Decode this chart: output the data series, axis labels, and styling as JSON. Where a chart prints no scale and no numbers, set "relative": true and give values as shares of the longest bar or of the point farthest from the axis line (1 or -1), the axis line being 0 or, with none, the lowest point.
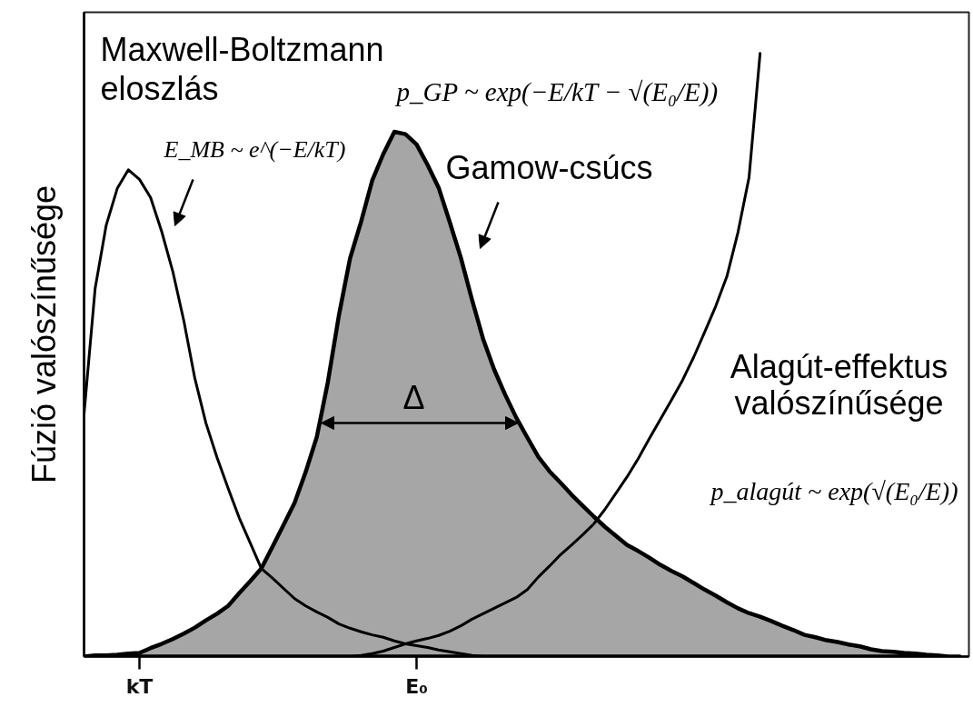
{
  "chart_data": {
    "type": "line",
    "relative": true,
    "ylabel": "Fúzió valószínűsége",
    "categories": [
      null,
      null,
      null,
      null,
      null,
      "kT",
      null,
      null,
      null,
      null,
      null,
      null,
      null,
      null,
      null,
      null,
      null,
      null,
      null,
      null,
      null,
      null,
      null,
      null,
      null,
      null,
      null,
      null,
      null,
      null,
      "E₀",
      null,
      null,
      null,
      null,
      null,
      null,
      null,
      null,
      null,
      null,
      null,
      null,
      null,
      null,
      null,
      null,
      null,
      null,
      null,
      null,
      null,
      null,
      null,
      null,
      null,
      null,
      null,
      null,
      null,
      null,
      null,
      null,
      null,
      null,
      null,
      null,
      null,
      null,
      null,
      null,
      null,
      null,
      null,
      null,
      null,
      null,
      null,
      null,
      null
    ],
    "series": [
      {
        "color": "#000000",
        "values": [
          0.402,
          0.61,
          0.715,
          0.776,
          0.807,
          0.791,
          0.761,
          0.705,
          0.639,
          0.557,
          0.461,
          0.387,
          0.33,
          0.279,
          0.23,
          0.188,
          0.146,
          0.13,
          0.113,
          0.096,
          0.084,
          0.074,
          0.065,
          0.054,
          0.047,
          0.041,
          0.036,
          0.032,
          0.026,
          0.021,
          0.018,
          0.015,
          0.011,
          0.008,
          0.005,
          0.002,
          0,
          null,
          null,
          null,
          null,
          null,
          null,
          null,
          null,
          null,
          null,
          null,
          null,
          null,
          null,
          null,
          null,
          null,
          null,
          null,
          null,
          null,
          null,
          null,
          null,
          null,
          null,
          null,
          null,
          null,
          null,
          null,
          null,
          null,
          null,
          null,
          null,
          null,
          null,
          null,
          null,
          null,
          null,
          null
        ]
      },
      {
        "name": "Gamow-csúcs",
        "type": "area",
        "color": "#a6a6a6",
        "values": [
          0,
          0.002,
          0.002,
          0.003,
          0.005,
          0.006,
          0.014,
          0.021,
          0.029,
          0.038,
          0.048,
          0.06,
          0.071,
          0.084,
          0.105,
          0.125,
          0.146,
          0.182,
          0.218,
          0.255,
          0.306,
          0.364,
          0.455,
          0.566,
          0.66,
          0.721,
          0.789,
          0.833,
          0.87,
          0.866,
          0.849,
          0.815,
          0.777,
          0.72,
          0.661,
          0.592,
          0.527,
          0.476,
          0.434,
          0.396,
          0.363,
          0.331,
          0.307,
          0.288,
          0.268,
          0.25,
          0.232,
          0.215,
          0.2,
          0.185,
          0.175,
          0.164,
          0.152,
          0.142,
          0.133,
          0.122,
          0.111,
          0.101,
          0.09,
          0.08,
          0.072,
          0.066,
          0.059,
          0.051,
          0.044,
          0.036,
          0.032,
          0.027,
          0.024,
          0.02,
          0.017,
          0.012,
          0.009,
          0.008,
          0.006,
          0.005,
          0.003,
          0.002,
          0,
          0
        ]
      },
      {
        "name": "Alagút-effektus valószínűsége",
        "color": "#000000",
        "values": [
          null,
          null,
          null,
          null,
          null,
          null,
          null,
          null,
          null,
          null,
          null,
          null,
          null,
          null,
          null,
          null,
          null,
          null,
          null,
          null,
          null,
          null,
          null,
          null,
          0,
          0.002,
          0.005,
          0.009,
          0.015,
          0.021,
          0.026,
          0.03,
          0.035,
          0.042,
          0.051,
          0.062,
          0.071,
          0.08,
          0.089,
          0.098,
          0.111,
          0.132,
          0.15,
          0.169,
          0.185,
          0.202,
          0.22,
          0.244,
          0.271,
          0.298,
          0.328,
          0.361,
          0.393,
          0.425,
          0.458,
          0.496,
          0.538,
          0.581,
          0.63,
          0.703,
          0.794,
          1,
          null,
          null,
          null,
          null,
          null,
          null,
          null,
          null,
          null,
          null,
          null,
          null,
          null,
          null,
          null,
          null,
          null,
          null
        ]
      }
    ],
    "annotations": [
      "Maxwell-Boltzmann eloszlás",
      "E_MB ~ e^(−E/kT)",
      "p_GP ~ exp(−E/kT − √(E₀/E))",
      "p_alagút ~ exp(√(E₀/E))",
      "Δ"
    ]
  }
}
